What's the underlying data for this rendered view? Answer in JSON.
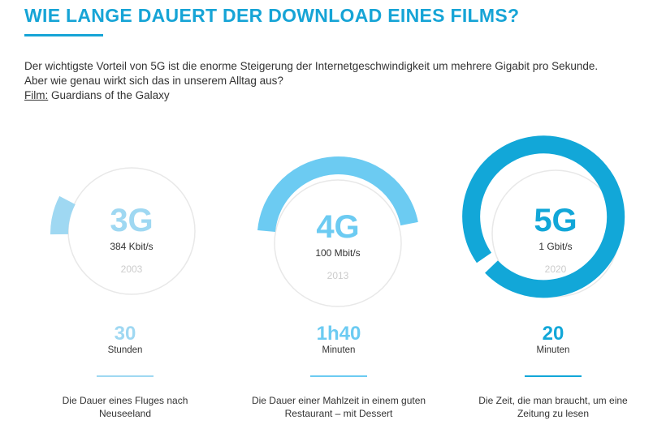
{
  "title": "WIE LANGE DAUERT DER DOWNLOAD EINES FILMS?",
  "intro": {
    "line1": "Der wichtigste Vorteil von 5G ist die enorme Steigerung der Internetgeschwindigkeit um mehrere Gigabit pro Sekunde.",
    "line2": "Aber wie genau wirkt sich das in unserem Alltag aus?",
    "film_label": "Film:",
    "film_value": "Guardians of the Galaxy"
  },
  "items": [
    {
      "gen": "3G",
      "speed": "384 Kbit/s",
      "year": "2003",
      "time": "30",
      "unit": "Stunden",
      "desc": "Die Dauer eines Fluges nach Neuseeland",
      "color": "#9fd8f2"
    },
    {
      "gen": "4G",
      "speed": "100 Mbit/s",
      "year": "2013",
      "time": "1h40",
      "unit": "Minuten",
      "desc": "Die Dauer einer Mahlzeit in einem guten Restaurant – mit Dessert",
      "color": "#6ccbf2"
    },
    {
      "gen": "5G",
      "speed": "1 Gbit/s",
      "year": "2020",
      "time": "20",
      "unit": "Minuten",
      "desc": "Die Zeit, die man braucht, um eine Zeitung zu lesen",
      "color": "#12a7d8"
    }
  ]
}
